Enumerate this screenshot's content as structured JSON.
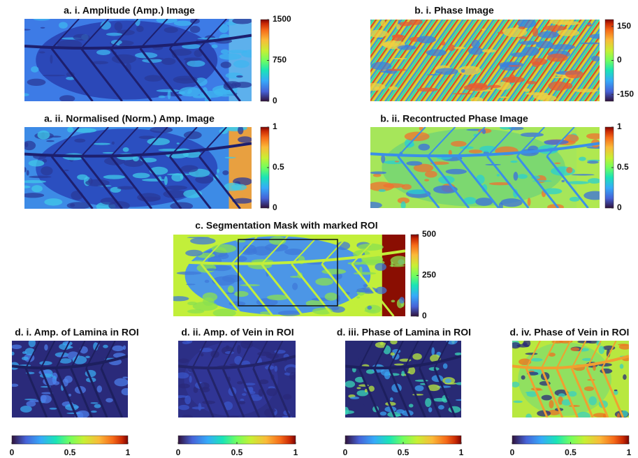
{
  "panels": [
    {
      "title": "a. i. Amplitude (Amp.) Image",
      "colorbar": {
        "range": [
          0,
          1500
        ],
        "ticks": [
          0,
          750,
          1500
        ]
      }
    },
    {
      "title": "b. i. Phase Image",
      "colorbar": {
        "range": [
          -180,
          180
        ],
        "ticks": [
          -150,
          0,
          150
        ]
      }
    },
    {
      "title": "a. ii. Normalised (Norm.) Amp. Image",
      "colorbar": {
        "range": [
          0,
          1
        ],
        "ticks": [
          0,
          0.5,
          1
        ]
      }
    },
    {
      "title": "b. ii. Recontructed Phase Image",
      "colorbar": {
        "range": [
          0,
          1
        ],
        "ticks": [
          0,
          0.5,
          1
        ]
      }
    },
    {
      "title": "c. Segmentation Mask with marked ROI",
      "colorbar": {
        "range": [
          0,
          500
        ],
        "ticks": [
          0,
          250,
          500
        ]
      }
    },
    {
      "title": "d. i. Amp. of Lamina in ROI",
      "colorbar": {
        "range": [
          0,
          1
        ],
        "ticks": [
          0,
          0.5,
          1
        ]
      }
    },
    {
      "title": "d. ii. Amp. of Vein in ROI",
      "colorbar": {
        "range": [
          0,
          1
        ],
        "ticks": [
          0,
          0.5,
          1
        ]
      }
    },
    {
      "title": "d. iii. Phase of Lamina in ROI",
      "colorbar": {
        "range": [
          0,
          1
        ],
        "ticks": [
          0,
          0.5,
          1
        ]
      }
    },
    {
      "title": "d. iv. Phase of Vein in ROI",
      "colorbar": {
        "range": [
          0,
          1
        ],
        "ticks": [
          0,
          0.5,
          1
        ]
      }
    }
  ]
}
